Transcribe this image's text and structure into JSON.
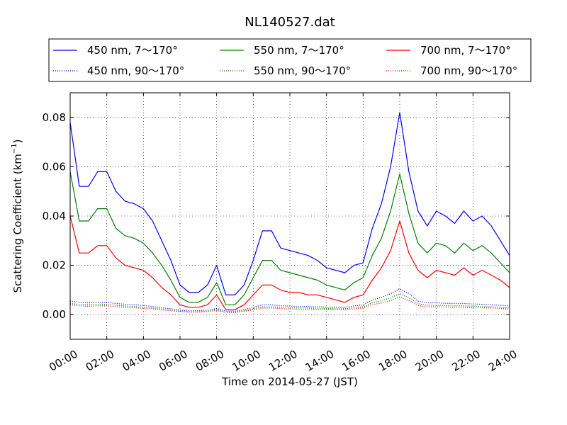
{
  "chart_data": {
    "type": "line",
    "title": "NL140527.dat",
    "xlabel": "Time on 2014-05-27 (JST)",
    "ylabel": "Scattering Coefficient (km",
    "ylabel_superscript": "−1",
    "ylabel_suffix": ")",
    "xlim": [
      "00:00",
      "24:00"
    ],
    "ylim": [
      -0.01,
      0.09
    ],
    "x_ticks": [
      "00:00",
      "02:00",
      "04:00",
      "06:00",
      "08:00",
      "10:00",
      "12:00",
      "14:00",
      "16:00",
      "18:00",
      "20:00",
      "22:00",
      "24:00"
    ],
    "y_ticks": [
      "0.00",
      "0.02",
      "0.04",
      "0.06",
      "0.08"
    ],
    "grid": true,
    "legend": "top, above plot, 3 columns",
    "x": [
      "00:00",
      "00:30",
      "01:00",
      "01:30",
      "02:00",
      "02:30",
      "03:00",
      "03:30",
      "04:00",
      "04:30",
      "05:00",
      "05:30",
      "06:00",
      "06:30",
      "07:00",
      "07:30",
      "08:00",
      "08:30",
      "09:00",
      "09:30",
      "10:00",
      "10:30",
      "11:00",
      "11:30",
      "12:00",
      "12:30",
      "13:00",
      "13:30",
      "14:00",
      "14:30",
      "15:00",
      "15:30",
      "16:00",
      "16:30",
      "17:00",
      "17:30",
      "18:00",
      "18:30",
      "19:00",
      "19:30",
      "20:00",
      "20:30",
      "21:00",
      "21:30",
      "22:00",
      "22:30",
      "23:00",
      "23:30",
      "24:00"
    ],
    "series": [
      {
        "name": "450 nm, 7～170°",
        "color": "#0000ff",
        "style": "solid",
        "values": [
          0.078,
          0.052,
          0.052,
          0.058,
          0.058,
          0.05,
          0.046,
          0.045,
          0.043,
          0.038,
          0.03,
          0.022,
          0.012,
          0.009,
          0.009,
          0.012,
          0.02,
          0.008,
          0.008,
          0.012,
          0.022,
          0.034,
          0.034,
          0.027,
          0.026,
          0.025,
          0.024,
          0.022,
          0.019,
          0.018,
          0.017,
          0.02,
          0.021,
          0.035,
          0.045,
          0.06,
          0.082,
          0.058,
          0.042,
          0.036,
          0.042,
          0.04,
          0.037,
          0.042,
          0.038,
          0.04,
          0.036,
          0.03,
          0.024
        ]
      },
      {
        "name": "450 nm, 90～170°",
        "color": "#0000ff",
        "style": "dotted",
        "values": [
          0.0055,
          0.005,
          0.0048,
          0.005,
          0.005,
          0.0045,
          0.0042,
          0.004,
          0.0038,
          0.0033,
          0.0028,
          0.0024,
          0.0018,
          0.0016,
          0.0016,
          0.0018,
          0.0025,
          0.0015,
          0.0015,
          0.002,
          0.003,
          0.004,
          0.004,
          0.0036,
          0.0035,
          0.0033,
          0.0033,
          0.0032,
          0.003,
          0.003,
          0.003,
          0.0035,
          0.004,
          0.006,
          0.007,
          0.0085,
          0.0105,
          0.0085,
          0.0055,
          0.0048,
          0.0048,
          0.0046,
          0.0045,
          0.0045,
          0.0043,
          0.0042,
          0.004,
          0.0038,
          0.0035
        ]
      },
      {
        "name": "550 nm, 7～170°",
        "color": "#008000",
        "style": "solid",
        "values": [
          0.058,
          0.038,
          0.038,
          0.043,
          0.043,
          0.035,
          0.032,
          0.031,
          0.029,
          0.025,
          0.02,
          0.014,
          0.007,
          0.005,
          0.005,
          0.007,
          0.013,
          0.004,
          0.004,
          0.008,
          0.015,
          0.022,
          0.022,
          0.018,
          0.017,
          0.016,
          0.015,
          0.014,
          0.012,
          0.011,
          0.01,
          0.013,
          0.015,
          0.024,
          0.031,
          0.042,
          0.057,
          0.041,
          0.029,
          0.025,
          0.029,
          0.028,
          0.025,
          0.029,
          0.026,
          0.028,
          0.025,
          0.021,
          0.017
        ]
      },
      {
        "name": "550 nm, 90～170°",
        "color": "#008000",
        "style": "dotted",
        "values": [
          0.0045,
          0.0042,
          0.004,
          0.0042,
          0.0042,
          0.0038,
          0.0035,
          0.0033,
          0.003,
          0.0027,
          0.0023,
          0.0019,
          0.0014,
          0.0012,
          0.0012,
          0.0014,
          0.002,
          0.0011,
          0.0011,
          0.0016,
          0.0024,
          0.0032,
          0.0032,
          0.0029,
          0.0028,
          0.0027,
          0.0027,
          0.0026,
          0.0024,
          0.0024,
          0.0024,
          0.0028,
          0.0032,
          0.0048,
          0.0056,
          0.0068,
          0.0085,
          0.0068,
          0.0044,
          0.0038,
          0.0038,
          0.0037,
          0.0036,
          0.0036,
          0.0034,
          0.0033,
          0.0032,
          0.003,
          0.0028
        ]
      },
      {
        "name": "700 nm, 7～170°",
        "color": "#ff0000",
        "style": "solid",
        "values": [
          0.04,
          0.025,
          0.025,
          0.028,
          0.028,
          0.023,
          0.02,
          0.019,
          0.018,
          0.015,
          0.011,
          0.008,
          0.004,
          0.003,
          0.003,
          0.004,
          0.008,
          0.002,
          0.002,
          0.004,
          0.008,
          0.012,
          0.012,
          0.01,
          0.009,
          0.009,
          0.008,
          0.008,
          0.007,
          0.006,
          0.005,
          0.007,
          0.008,
          0.014,
          0.019,
          0.026,
          0.038,
          0.025,
          0.018,
          0.015,
          0.018,
          0.017,
          0.016,
          0.019,
          0.016,
          0.018,
          0.016,
          0.014,
          0.011
        ]
      },
      {
        "name": "700 nm, 90～170°",
        "color": "#ff0000",
        "style": "dotted",
        "values": [
          0.004,
          0.0036,
          0.0034,
          0.0036,
          0.0036,
          0.0032,
          0.003,
          0.0028,
          0.0026,
          0.0023,
          0.0019,
          0.0016,
          0.0012,
          0.001,
          0.001,
          0.0012,
          0.0017,
          0.0009,
          0.0009,
          0.0013,
          0.002,
          0.0027,
          0.0027,
          0.0024,
          0.0023,
          0.0022,
          0.0022,
          0.0021,
          0.002,
          0.002,
          0.002,
          0.0023,
          0.0027,
          0.004,
          0.0047,
          0.0057,
          0.0072,
          0.0057,
          0.0037,
          0.0032,
          0.0032,
          0.0031,
          0.003,
          0.003,
          0.0028,
          0.0028,
          0.0027,
          0.0025,
          0.0023
        ]
      }
    ]
  }
}
